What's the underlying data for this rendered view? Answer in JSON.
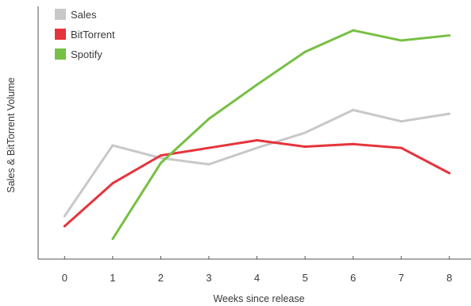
{
  "chart_data": {
    "type": "line",
    "xlabel": "Weeks since release",
    "ylabel": "Sales & BitTorrent Volume",
    "x": [
      0,
      1,
      2,
      3,
      4,
      5,
      6,
      7,
      8
    ],
    "xlim": [
      -0.55,
      8.45
    ],
    "ylim": [
      0,
      100
    ],
    "grid": false,
    "legend_position": "top-left",
    "series": [
      {
        "name": "Sales",
        "color": "#c8c8c8",
        "points": [
          [
            0,
            17
          ],
          [
            1,
            45
          ],
          [
            2,
            40
          ],
          [
            3,
            37.5
          ],
          [
            4,
            44
          ],
          [
            5,
            50
          ],
          [
            6,
            59
          ],
          [
            7,
            54.5
          ],
          [
            8,
            57.5
          ]
        ]
      },
      {
        "name": "BitTorrent",
        "color": "#e5343b",
        "points": [
          [
            0,
            13
          ],
          [
            1,
            30
          ],
          [
            2,
            41
          ],
          [
            3,
            44
          ],
          [
            4,
            47
          ],
          [
            5,
            44.5
          ],
          [
            6,
            45.5
          ],
          [
            7,
            44
          ],
          [
            8,
            34
          ]
        ]
      },
      {
        "name": "Spotify",
        "color": "#76c043",
        "points": [
          [
            1,
            8
          ],
          [
            2,
            38
          ],
          [
            3,
            55.5
          ],
          [
            4,
            69
          ],
          [
            5,
            82
          ],
          [
            6,
            90.5
          ],
          [
            7,
            86.5
          ],
          [
            8,
            88.5
          ]
        ]
      }
    ]
  }
}
